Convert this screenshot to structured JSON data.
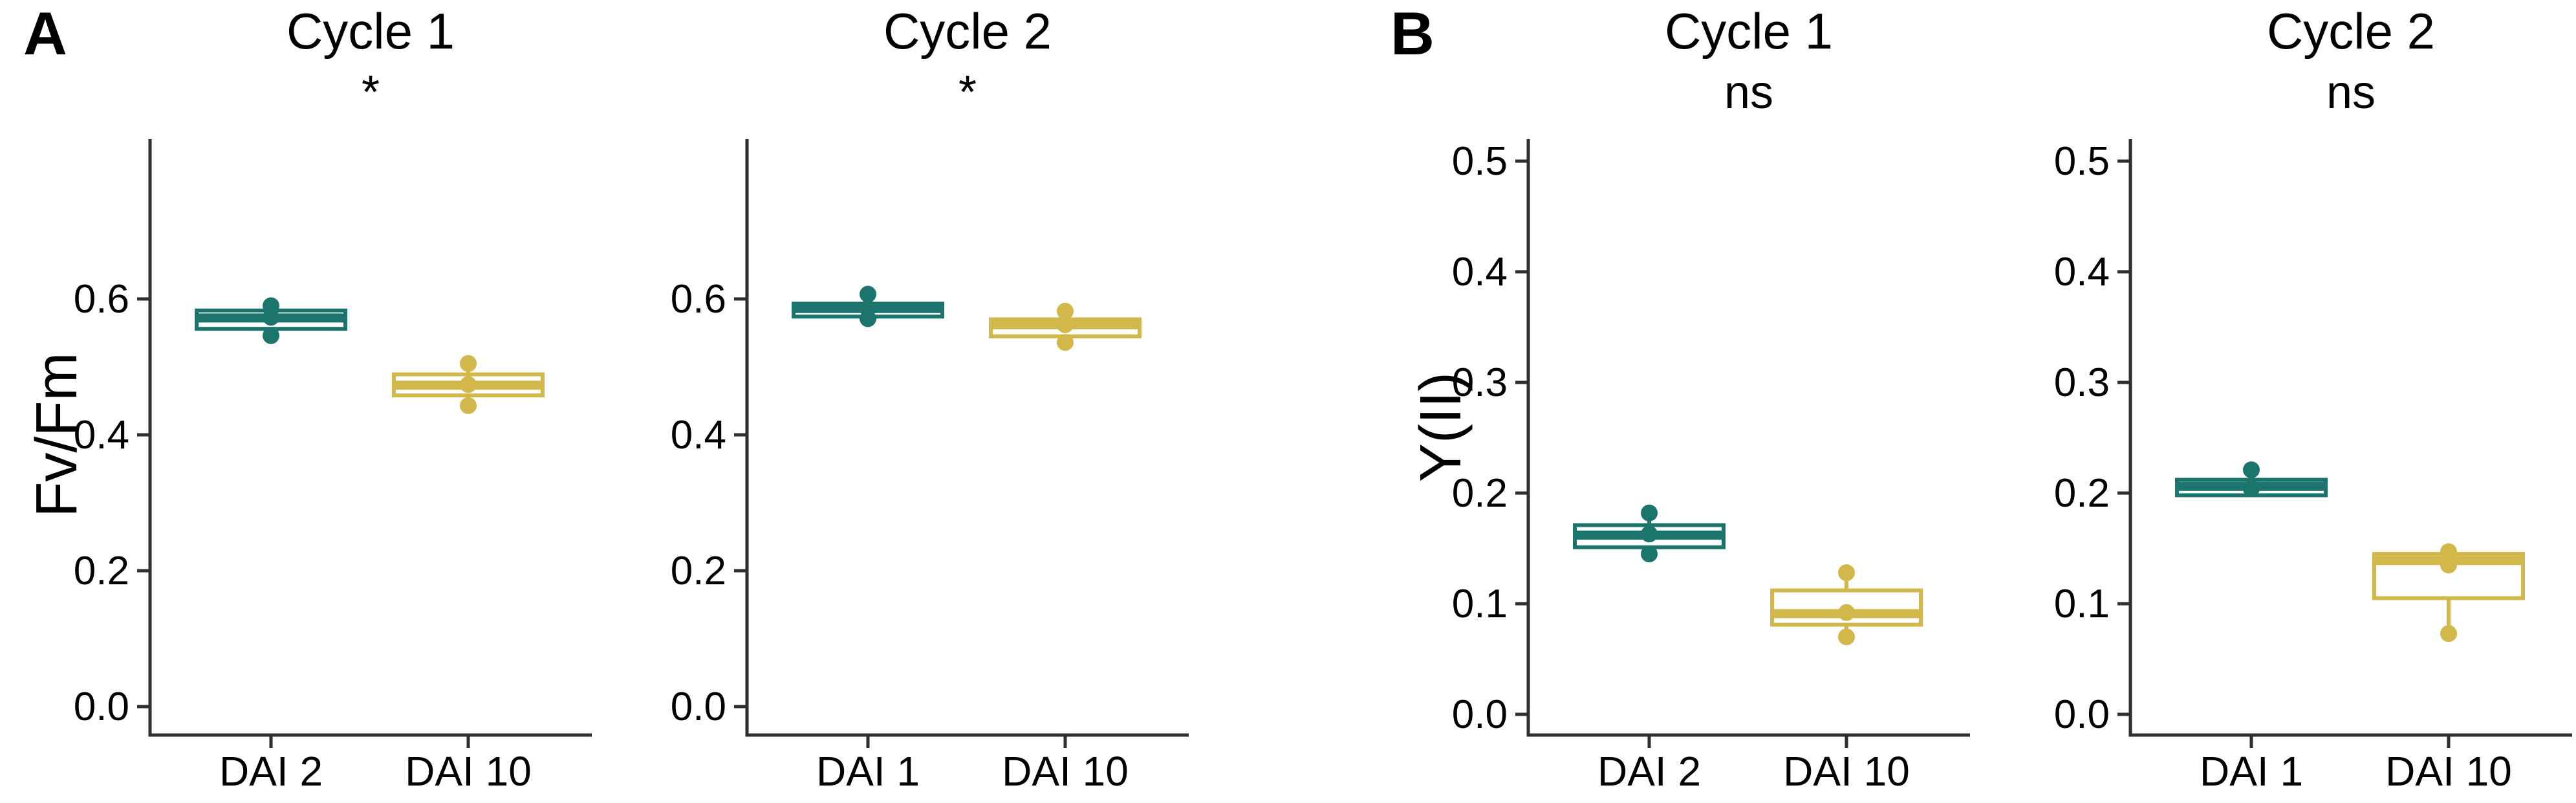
{
  "panels": [
    {
      "label": "A",
      "ylabel": "Fv/Fm"
    },
    {
      "label": "B",
      "ylabel": "Y(II)"
    }
  ],
  "colors": {
    "teal": "#1B756C",
    "gold": "#D2B84A",
    "axis": "#2E2E2E",
    "text": "#000000",
    "background": "#FFFFFF"
  },
  "chart_data": [
    {
      "type": "box",
      "panel": "A",
      "title": "Cycle 1",
      "significance": "*",
      "ylabel": "Fv/Fm",
      "ylim": [
        0.0,
        0.84
      ],
      "yticks": [
        0.0,
        0.2,
        0.4,
        0.6
      ],
      "ytick_labels": [
        "0.0",
        "0.2",
        "0.4",
        "0.6"
      ],
      "categories": [
        "DAI 2",
        "DAI 10"
      ],
      "series": [
        {
          "category": "DAI 2",
          "color_key": "teal",
          "whisker_low": 0.545,
          "q1": 0.556,
          "median": 0.572,
          "q3": 0.583,
          "whisker_high": 0.59,
          "points": [
            0.59,
            0.573,
            0.546
          ]
        },
        {
          "category": "DAI 10",
          "color_key": "gold",
          "whisker_low": 0.443,
          "q1": 0.458,
          "median": 0.473,
          "q3": 0.489,
          "whisker_high": 0.505,
          "points": [
            0.505,
            0.474,
            0.443
          ]
        }
      ]
    },
    {
      "type": "box",
      "panel": "A",
      "title": "Cycle 2",
      "significance": "*",
      "ylabel": "Fv/Fm",
      "ylim": [
        0.0,
        0.84
      ],
      "yticks": [
        0.0,
        0.2,
        0.4,
        0.6
      ],
      "ytick_labels": [
        "0.0",
        "0.2",
        "0.4",
        "0.6"
      ],
      "categories": [
        "DAI 1",
        "DAI 10"
      ],
      "series": [
        {
          "category": "DAI 1",
          "color_key": "teal",
          "whisker_low": 0.571,
          "q1": 0.574,
          "median": 0.586,
          "q3": 0.593,
          "whisker_high": 0.607,
          "points": [
            0.607,
            0.586,
            0.571
          ]
        },
        {
          "category": "DAI 10",
          "color_key": "gold",
          "whisker_low": 0.536,
          "q1": 0.545,
          "median": 0.562,
          "q3": 0.57,
          "whisker_high": 0.582,
          "points": [
            0.582,
            0.562,
            0.536
          ]
        }
      ]
    },
    {
      "type": "box",
      "panel": "B",
      "title": "Cycle 1",
      "significance": "ns",
      "ylabel": "Y(II)",
      "ylim": [
        0.0,
        0.52
      ],
      "yticks": [
        0.0,
        0.1,
        0.2,
        0.3,
        0.4,
        0.5
      ],
      "ytick_labels": [
        "0.0",
        "0.1",
        "0.2",
        "0.3",
        "0.4",
        "0.5"
      ],
      "categories": [
        "DAI 2",
        "DAI 10"
      ],
      "series": [
        {
          "category": "DAI 2",
          "color_key": "teal",
          "whisker_low": 0.145,
          "q1": 0.151,
          "median": 0.162,
          "q3": 0.171,
          "whisker_high": 0.182,
          "points": [
            0.182,
            0.163,
            0.145
          ]
        },
        {
          "category": "DAI 10",
          "color_key": "gold",
          "whisker_low": 0.072,
          "q1": 0.081,
          "median": 0.091,
          "q3": 0.112,
          "whisker_high": 0.128,
          "points": [
            0.128,
            0.092,
            0.07
          ]
        }
      ]
    },
    {
      "type": "box",
      "panel": "B",
      "title": "Cycle 2",
      "significance": "ns",
      "ylabel": "Y(II)",
      "ylim": [
        0.0,
        0.52
      ],
      "yticks": [
        0.0,
        0.1,
        0.2,
        0.3,
        0.4,
        0.5
      ],
      "ytick_labels": [
        "0.0",
        "0.1",
        "0.2",
        "0.3",
        "0.4",
        "0.5"
      ],
      "categories": [
        "DAI 1",
        "DAI 10"
      ],
      "series": [
        {
          "category": "DAI 1",
          "color_key": "teal",
          "whisker_low": 0.197,
          "q1": 0.198,
          "median": 0.206,
          "q3": 0.212,
          "whisker_high": 0.221,
          "points": [
            0.221,
            0.204
          ]
        },
        {
          "category": "DAI 10",
          "color_key": "gold",
          "whisker_low": 0.073,
          "q1": 0.105,
          "median": 0.139,
          "q3": 0.145,
          "whisker_high": 0.147,
          "points": [
            0.147,
            0.135,
            0.073
          ]
        }
      ]
    }
  ]
}
